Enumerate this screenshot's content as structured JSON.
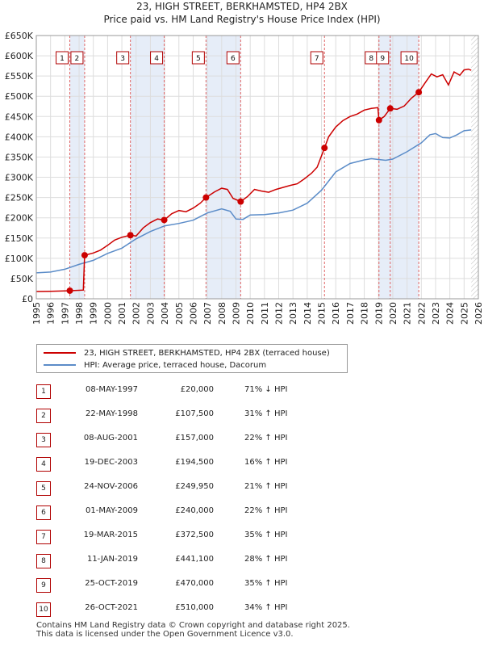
{
  "chart_data": {
    "type": "line",
    "title": "23, HIGH STREET, BERKHAMSTED, HP4 2BX",
    "subtitle": "Price paid vs. HM Land Registry's House Price Index (HPI)",
    "xlim": [
      1995,
      2026
    ],
    "ylim": [
      0,
      650000
    ],
    "x_ticks": [
      "1995",
      "1996",
      "1997",
      "1998",
      "1999",
      "2000",
      "2001",
      "2002",
      "2003",
      "2004",
      "2005",
      "2006",
      "2007",
      "2008",
      "2009",
      "2010",
      "2011",
      "2012",
      "2013",
      "2014",
      "2015",
      "2016",
      "2017",
      "2018",
      "2019",
      "2020",
      "2021",
      "2022",
      "2023",
      "2024",
      "2025",
      "2026"
    ],
    "y_ticks": [
      {
        "value": 0,
        "label": "£0"
      },
      {
        "value": 50000,
        "label": "£50K"
      },
      {
        "value": 100000,
        "label": "£100K"
      },
      {
        "value": 150000,
        "label": "£150K"
      },
      {
        "value": 200000,
        "label": "£200K"
      },
      {
        "value": 250000,
        "label": "£250K"
      },
      {
        "value": 300000,
        "label": "£300K"
      },
      {
        "value": 350000,
        "label": "£350K"
      },
      {
        "value": 400000,
        "label": "£400K"
      },
      {
        "value": 450000,
        "label": "£450K"
      },
      {
        "value": 500000,
        "label": "£500K"
      },
      {
        "value": 550000,
        "label": "£550K"
      },
      {
        "value": 600000,
        "label": "£600K"
      },
      {
        "value": 650000,
        "label": "£650K"
      }
    ],
    "series": [
      {
        "name": "23, HIGH STREET, BERKHAMSTED, HP4 2BX (terraced house)",
        "color": "#cc0000",
        "points": [
          [
            1995.0,
            18000
          ],
          [
            1996.0,
            18500
          ],
          [
            1997.0,
            19500
          ],
          [
            1997.35,
            20000
          ],
          [
            1998.0,
            21000
          ],
          [
            1998.3,
            21500
          ],
          [
            1998.39,
            107500
          ],
          [
            1999.0,
            113000
          ],
          [
            1999.5,
            120000
          ],
          [
            2000.0,
            132000
          ],
          [
            2000.5,
            145000
          ],
          [
            2001.0,
            152000
          ],
          [
            2001.6,
            157000
          ],
          [
            2002.0,
            155000
          ],
          [
            2002.5,
            175000
          ],
          [
            2003.0,
            188000
          ],
          [
            2003.5,
            197000
          ],
          [
            2003.97,
            194500
          ],
          [
            2004.5,
            210000
          ],
          [
            2005.0,
            218000
          ],
          [
            2005.5,
            215000
          ],
          [
            2006.0,
            224000
          ],
          [
            2006.5,
            236000
          ],
          [
            2006.9,
            249950
          ],
          [
            2007.5,
            264000
          ],
          [
            2008.0,
            273000
          ],
          [
            2008.4,
            270000
          ],
          [
            2008.8,
            248000
          ],
          [
            2009.33,
            240000
          ],
          [
            2009.8,
            252000
          ],
          [
            2010.3,
            270000
          ],
          [
            2010.8,
            266000
          ],
          [
            2011.3,
            263000
          ],
          [
            2011.8,
            270000
          ],
          [
            2012.3,
            275000
          ],
          [
            2012.8,
            280000
          ],
          [
            2013.3,
            284000
          ],
          [
            2013.8,
            296000
          ],
          [
            2014.3,
            310000
          ],
          [
            2014.7,
            325000
          ],
          [
            2015.21,
            372500
          ],
          [
            2015.5,
            400000
          ],
          [
            2016.0,
            424000
          ],
          [
            2016.5,
            440000
          ],
          [
            2017.0,
            450000
          ],
          [
            2017.5,
            456000
          ],
          [
            2018.0,
            466000
          ],
          [
            2018.5,
            470000
          ],
          [
            2018.95,
            472000
          ],
          [
            2019.03,
            441100
          ],
          [
            2019.4,
            450000
          ],
          [
            2019.82,
            470000
          ],
          [
            2020.3,
            468000
          ],
          [
            2020.8,
            476000
          ],
          [
            2021.3,
            495000
          ],
          [
            2021.82,
            510000
          ],
          [
            2022.3,
            535000
          ],
          [
            2022.7,
            555000
          ],
          [
            2023.1,
            548000
          ],
          [
            2023.5,
            553000
          ],
          [
            2023.9,
            528000
          ],
          [
            2024.3,
            560000
          ],
          [
            2024.7,
            552000
          ],
          [
            2025.0,
            565000
          ],
          [
            2025.3,
            567000
          ],
          [
            2025.5,
            564000
          ]
        ]
      },
      {
        "name": "HPI: Average price, terraced house, Dacorum",
        "color": "#5b8cc8",
        "points": [
          [
            1995.0,
            64000
          ],
          [
            1996.0,
            66000
          ],
          [
            1997.0,
            73000
          ],
          [
            1998.0,
            85000
          ],
          [
            1999.0,
            95000
          ],
          [
            2000.0,
            112000
          ],
          [
            2001.0,
            125000
          ],
          [
            2002.0,
            148000
          ],
          [
            2003.0,
            166000
          ],
          [
            2004.0,
            180000
          ],
          [
            2005.0,
            186000
          ],
          [
            2006.0,
            194000
          ],
          [
            2007.0,
            212000
          ],
          [
            2008.0,
            222000
          ],
          [
            2008.6,
            216000
          ],
          [
            2009.0,
            197000
          ],
          [
            2009.5,
            196000
          ],
          [
            2010.0,
            207000
          ],
          [
            2011.0,
            208000
          ],
          [
            2012.0,
            212000
          ],
          [
            2013.0,
            219000
          ],
          [
            2014.0,
            236000
          ],
          [
            2015.0,
            268000
          ],
          [
            2016.0,
            313000
          ],
          [
            2017.0,
            334000
          ],
          [
            2018.0,
            343000
          ],
          [
            2018.5,
            346000
          ],
          [
            2019.0,
            344000
          ],
          [
            2019.5,
            342000
          ],
          [
            2020.0,
            345000
          ],
          [
            2021.0,
            363000
          ],
          [
            2022.0,
            385000
          ],
          [
            2022.6,
            405000
          ],
          [
            2023.0,
            408000
          ],
          [
            2023.5,
            398000
          ],
          [
            2024.0,
            397000
          ],
          [
            2024.5,
            405000
          ],
          [
            2025.0,
            415000
          ],
          [
            2025.5,
            417000
          ]
        ]
      }
    ],
    "transactions": [
      {
        "n": "1",
        "x": 1997.35,
        "value": 20000
      },
      {
        "n": "2",
        "x": 1998.39,
        "value": 107500
      },
      {
        "n": "3",
        "x": 2001.6,
        "value": 157000
      },
      {
        "n": "4",
        "x": 2003.97,
        "value": 194500
      },
      {
        "n": "5",
        "x": 2006.9,
        "value": 249950
      },
      {
        "n": "6",
        "x": 2009.33,
        "value": 240000
      },
      {
        "n": "7",
        "x": 2015.21,
        "value": 372500
      },
      {
        "n": "8",
        "x": 2019.03,
        "value": 441100
      },
      {
        "n": "9",
        "x": 2019.82,
        "value": 470000
      },
      {
        "n": "10",
        "x": 2021.82,
        "value": 510000
      }
    ],
    "shaded_periods": [
      [
        1997.35,
        1998.39
      ],
      [
        2001.6,
        2003.97
      ],
      [
        2006.9,
        2009.33
      ],
      [
        2019.03,
        2019.82
      ],
      [
        2021.82,
        2021.82
      ]
    ],
    "shaded_full": [
      [
        2019.82,
        2021.82
      ]
    ],
    "hatched_from": 2025.5
  },
  "legend": {
    "property": "23, HIGH STREET, BERKHAMSTED, HP4 2BX (terraced house)",
    "hpi": "HPI: Average price, terraced house, Dacorum",
    "property_color": "#cc0000",
    "hpi_color": "#5b8cc8"
  },
  "table": [
    {
      "n": "1",
      "date": "08-MAY-1997",
      "price": "£20,000",
      "hpi": "71% ↓ HPI"
    },
    {
      "n": "2",
      "date": "22-MAY-1998",
      "price": "£107,500",
      "hpi": "31% ↑ HPI"
    },
    {
      "n": "3",
      "date": "08-AUG-2001",
      "price": "£157,000",
      "hpi": "22% ↑ HPI"
    },
    {
      "n": "4",
      "date": "19-DEC-2003",
      "price": "£194,500",
      "hpi": "16% ↑ HPI"
    },
    {
      "n": "5",
      "date": "24-NOV-2006",
      "price": "£249,950",
      "hpi": "21% ↑ HPI"
    },
    {
      "n": "6",
      "date": "01-MAY-2009",
      "price": "£240,000",
      "hpi": "22% ↑ HPI"
    },
    {
      "n": "7",
      "date": "19-MAR-2015",
      "price": "£372,500",
      "hpi": "35% ↑ HPI"
    },
    {
      "n": "8",
      "date": "11-JAN-2019",
      "price": "£441,100",
      "hpi": "28% ↑ HPI"
    },
    {
      "n": "9",
      "date": "25-OCT-2019",
      "price": "£470,000",
      "hpi": "35% ↑ HPI"
    },
    {
      "n": "10",
      "date": "26-OCT-2021",
      "price": "£510,000",
      "hpi": "34% ↑ HPI"
    }
  ],
  "footer": {
    "line1": "Contains HM Land Registry data © Crown copyright and database right 2025.",
    "line2": "This data is licensed under the Open Government Licence v3.0."
  }
}
